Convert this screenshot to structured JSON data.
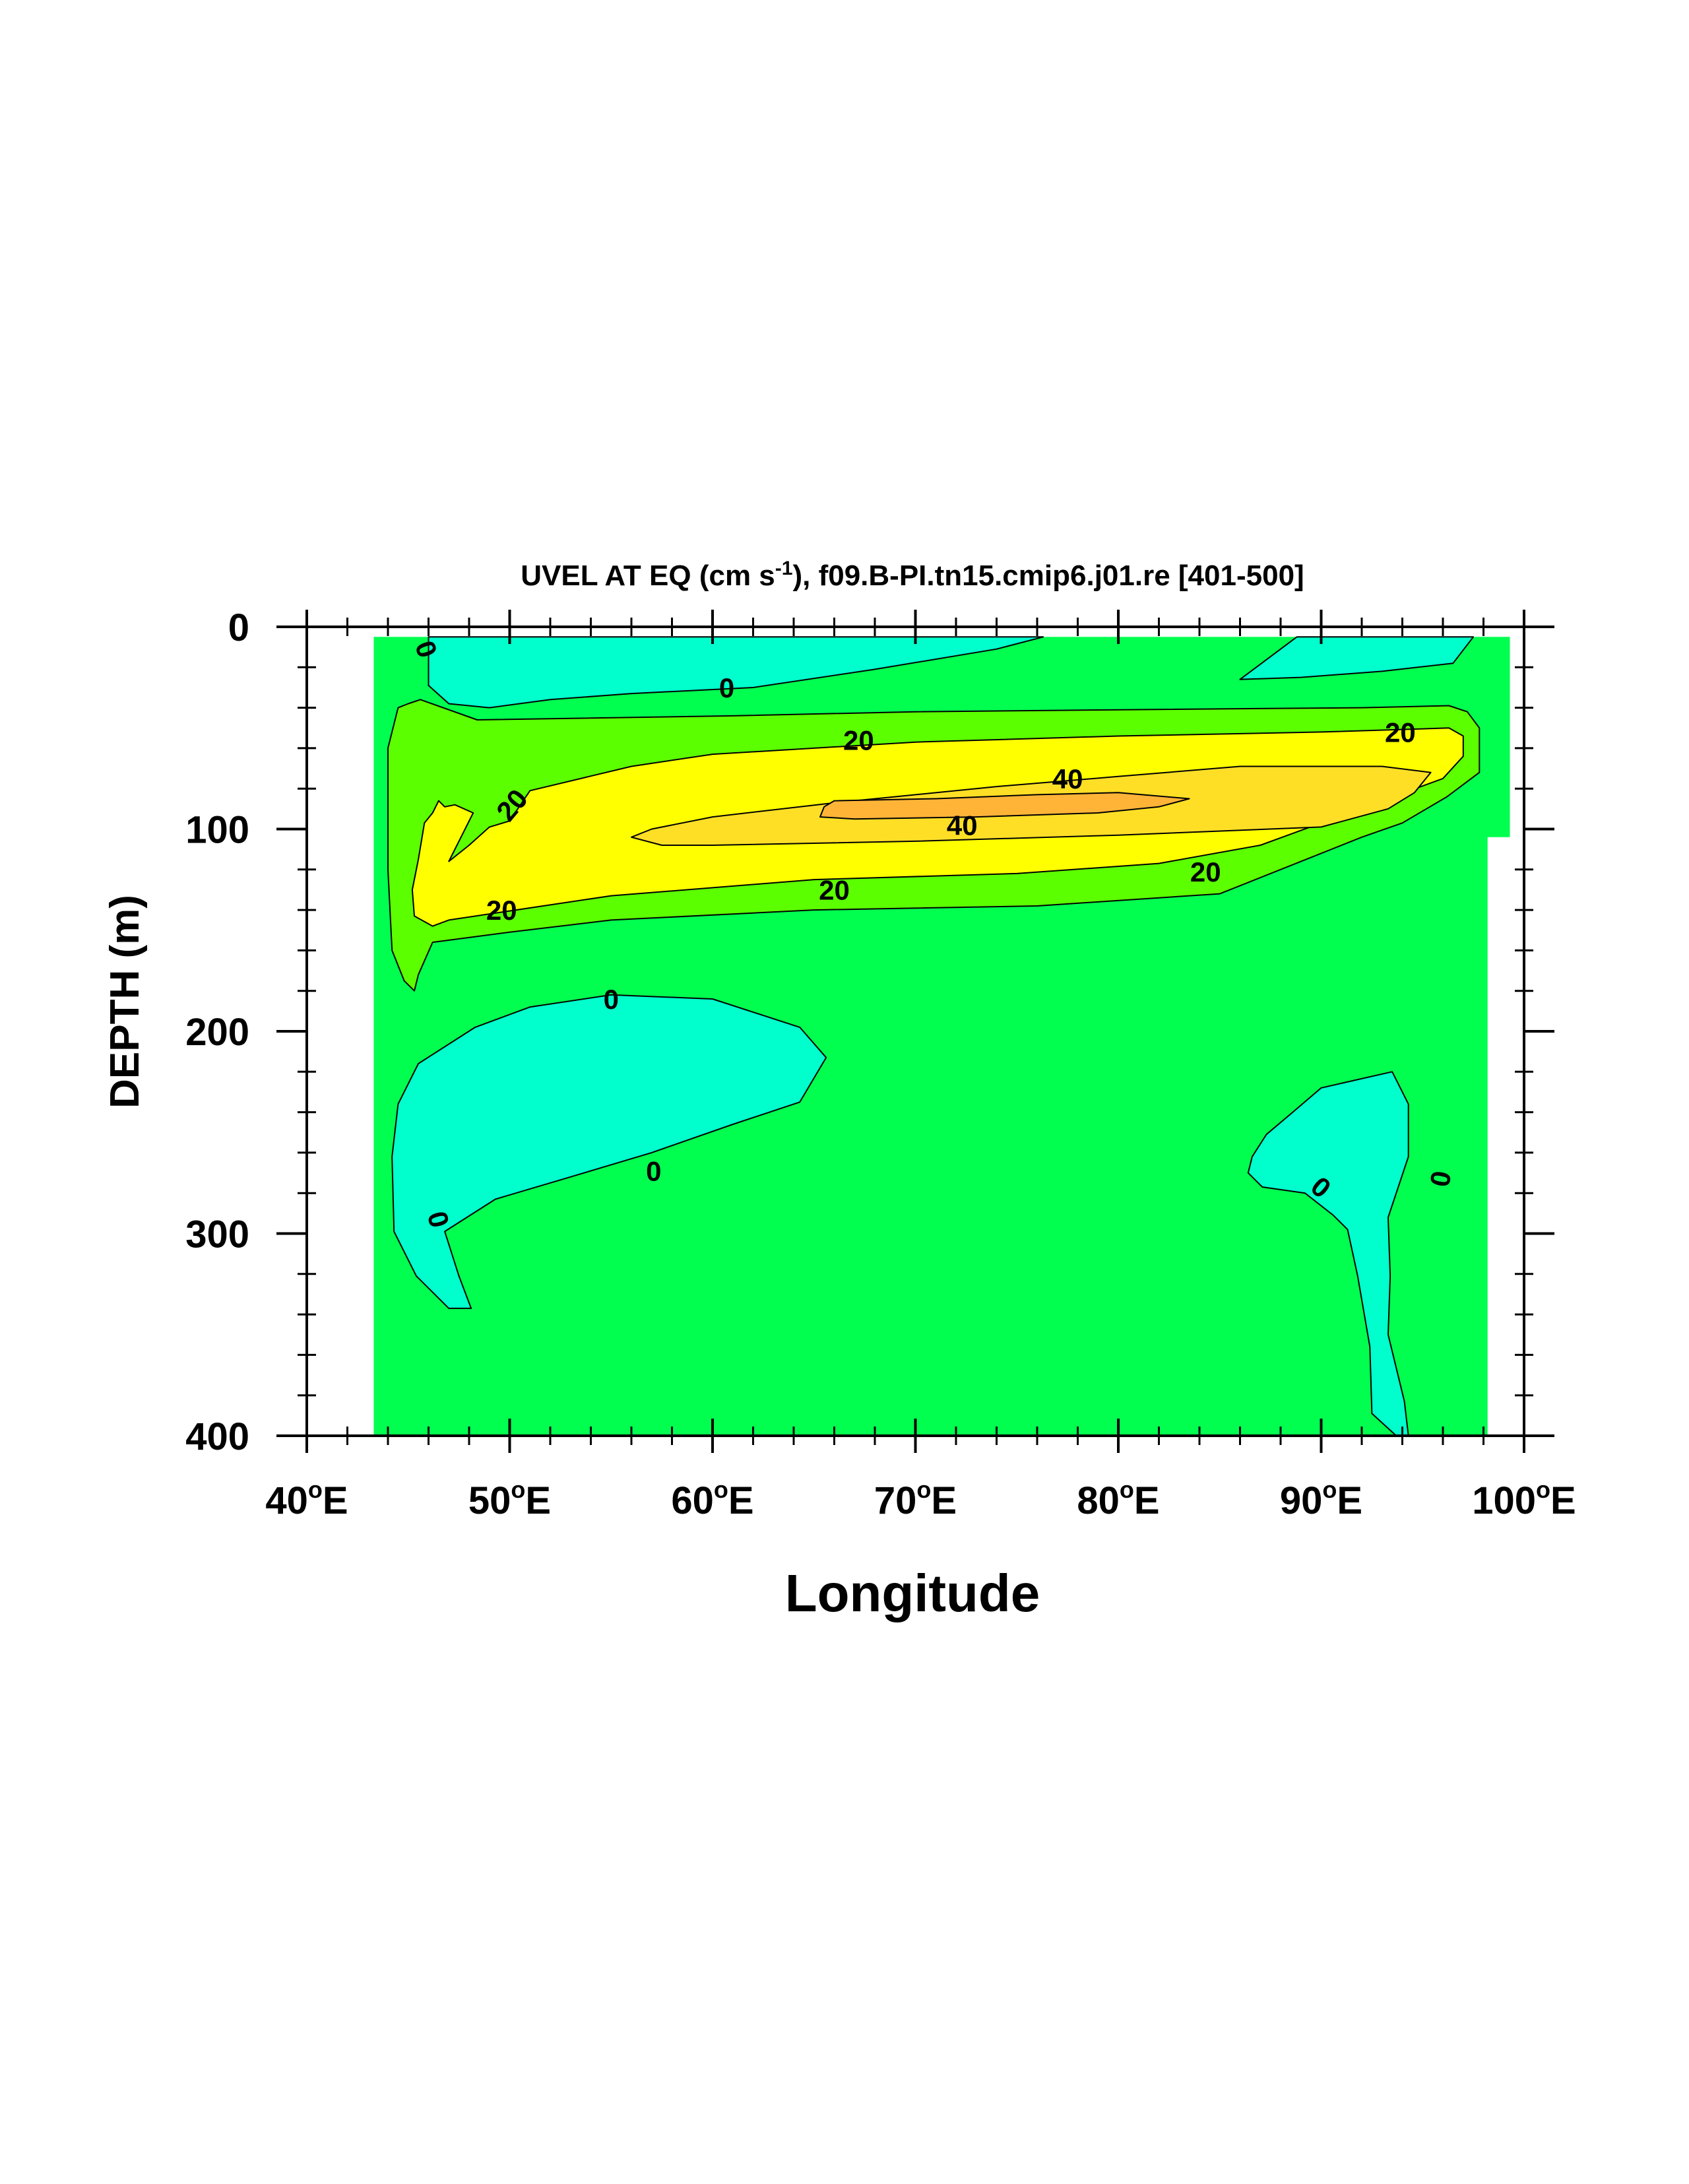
{
  "chart_data": {
    "type": "heatmap",
    "title": "UVEL AT EQ (cm s",
    "title_superscript": "-1",
    "title_suffix": "), f09.B-PI.tn15.cmip6.j01.re [401-500]",
    "xlabel": "Longitude",
    "ylabel": "DEPTH (m)",
    "xlim": [
      40,
      100
    ],
    "ylim": [
      0,
      400
    ],
    "y_reversed": true,
    "x_ticks": [
      {
        "value": 40,
        "label": "40",
        "unit": "E"
      },
      {
        "value": 50,
        "label": "50",
        "unit": "E"
      },
      {
        "value": 60,
        "label": "60",
        "unit": "E"
      },
      {
        "value": 70,
        "label": "70",
        "unit": "E"
      },
      {
        "value": 80,
        "label": "80",
        "unit": "E"
      },
      {
        "value": 90,
        "label": "90",
        "unit": "E"
      },
      {
        "value": 100,
        "label": "100",
        "unit": "E"
      }
    ],
    "degree_symbol": "o",
    "y_ticks": [
      {
        "value": 0,
        "label": "0"
      },
      {
        "value": 100,
        "label": "100"
      },
      {
        "value": 200,
        "label": "200"
      },
      {
        "value": 300,
        "label": "300"
      },
      {
        "value": 400,
        "label": "400"
      }
    ],
    "x_minor_step": 2,
    "y_minor_step": 20,
    "grid": false,
    "legend": "none",
    "colors": {
      "background": "#ffffff",
      "level_0_to_10": "#00ff4f",
      "level_below_0": "#00ffcc",
      "level_10_to_20": "#5cff00",
      "level_20_to_30": "#ffff00",
      "level_30_to_40": "#ffdf26",
      "level_above_40": "#ffb438",
      "contour_line": "#000000"
    },
    "data_domain": [
      [
        43.3,
        5
      ],
      [
        99.3,
        5
      ],
      [
        99.3,
        104
      ],
      [
        98.2,
        104
      ],
      [
        98.2,
        400
      ],
      [
        43.3,
        400
      ]
    ],
    "regions": [
      {
        "level": "level_10_to_20",
        "points": [
          [
            48.4,
            46
          ],
          [
            61,
            44
          ],
          [
            70,
            42
          ],
          [
            80,
            41
          ],
          [
            92,
            40
          ],
          [
            96.3,
            39
          ],
          [
            97.2,
            42
          ],
          [
            97.8,
            50
          ],
          [
            97.8,
            72
          ],
          [
            96.2,
            84
          ],
          [
            94,
            97
          ],
          [
            92,
            104
          ],
          [
            85,
            132
          ],
          [
            76,
            138
          ],
          [
            65,
            140
          ],
          [
            55,
            145
          ],
          [
            50,
            151
          ],
          [
            46.2,
            156
          ],
          [
            45.5,
            172
          ],
          [
            45.3,
            180
          ],
          [
            44.8,
            175
          ],
          [
            44.2,
            160
          ],
          [
            44,
            120
          ],
          [
            44,
            60
          ],
          [
            44.5,
            40
          ],
          [
            45,
            38
          ],
          [
            45.6,
            36
          ]
        ]
      },
      {
        "level": "level_20_to_30",
        "points": [
          [
            47,
            116
          ],
          [
            48,
            108
          ],
          [
            49,
            99
          ],
          [
            50,
            96
          ],
          [
            51,
            81
          ],
          [
            56,
            69
          ],
          [
            60,
            63
          ],
          [
            70,
            57
          ],
          [
            80,
            54
          ],
          [
            90,
            52
          ],
          [
            96.3,
            50
          ],
          [
            97,
            54
          ],
          [
            97,
            64
          ],
          [
            96,
            75
          ],
          [
            93,
            86
          ],
          [
            87,
            108
          ],
          [
            82,
            117
          ],
          [
            75,
            122
          ],
          [
            65,
            125
          ],
          [
            55,
            133
          ],
          [
            47,
            145
          ],
          [
            46.2,
            148
          ],
          [
            45.3,
            143
          ],
          [
            45.2,
            130
          ],
          [
            45.5,
            115
          ],
          [
            45.8,
            97
          ],
          [
            46.2,
            92
          ],
          [
            46.5,
            86
          ],
          [
            46.8,
            89
          ],
          [
            47.3,
            88
          ],
          [
            48.2,
            92
          ]
        ]
      },
      {
        "level": "level_30_to_40",
        "points": [
          [
            56,
            104
          ],
          [
            57,
            100
          ],
          [
            60,
            94
          ],
          [
            66,
            87
          ],
          [
            74,
            79
          ],
          [
            80,
            74
          ],
          [
            86,
            69
          ],
          [
            93,
            69
          ],
          [
            95.4,
            72
          ],
          [
            94.6,
            82
          ],
          [
            93.3,
            90
          ],
          [
            90,
            99
          ],
          [
            80,
            103
          ],
          [
            70,
            106
          ],
          [
            60,
            108
          ],
          [
            57.5,
            108
          ]
        ]
      },
      {
        "level": "level_above_40",
        "points": [
          [
            66,
            86
          ],
          [
            71,
            85
          ],
          [
            76,
            83
          ],
          [
            80,
            82
          ],
          [
            83.5,
            85
          ],
          [
            82,
            89
          ],
          [
            79,
            92
          ],
          [
            73,
            94
          ],
          [
            67,
            95
          ],
          [
            65.3,
            94
          ],
          [
            65.5,
            89
          ]
        ]
      },
      {
        "level": "level_below_0",
        "points": [
          [
            46,
            5
          ],
          [
            76.3,
            5
          ],
          [
            74,
            11
          ],
          [
            68,
            21
          ],
          [
            62,
            30
          ],
          [
            56,
            33
          ],
          [
            52,
            36
          ],
          [
            49,
            40
          ],
          [
            47,
            38
          ],
          [
            46,
            29
          ],
          [
            46,
            13
          ]
        ]
      },
      {
        "level": "level_below_0",
        "points": [
          [
            88.8,
            5
          ],
          [
            97.5,
            5
          ],
          [
            96.5,
            18
          ],
          [
            93,
            22
          ],
          [
            89,
            25
          ],
          [
            86,
            26
          ]
        ]
      },
      {
        "level": "level_below_0",
        "points": [
          [
            55,
            182
          ],
          [
            60,
            184
          ],
          [
            64.3,
            198
          ],
          [
            65.6,
            213
          ],
          [
            64.3,
            235
          ],
          [
            61,
            246
          ],
          [
            57,
            260
          ],
          [
            53,
            272
          ],
          [
            49.3,
            283
          ],
          [
            46.8,
            299
          ],
          [
            47.5,
            321
          ],
          [
            48.1,
            337
          ],
          [
            47,
            337
          ],
          [
            45.4,
            321
          ],
          [
            44.3,
            299
          ],
          [
            44.2,
            262
          ],
          [
            44.5,
            236
          ],
          [
            45.5,
            216
          ],
          [
            48.3,
            198
          ],
          [
            51,
            188
          ]
        ]
      },
      {
        "level": "level_below_0",
        "points": [
          [
            93.5,
            220
          ],
          [
            94.3,
            236
          ],
          [
            94.3,
            262
          ],
          [
            93.3,
            292
          ],
          [
            93.4,
            321
          ],
          [
            93.3,
            350
          ],
          [
            94.1,
            383
          ],
          [
            94.3,
            400
          ],
          [
            93.7,
            400
          ],
          [
            92.5,
            389
          ],
          [
            92.4,
            356
          ],
          [
            91.8,
            321
          ],
          [
            91.3,
            298
          ],
          [
            90.6,
            291
          ],
          [
            89.2,
            280
          ],
          [
            87.1,
            277
          ],
          [
            86.4,
            270
          ],
          [
            86.6,
            262
          ],
          [
            87.3,
            251
          ],
          [
            88.6,
            240
          ],
          [
            90,
            228
          ]
        ]
      }
    ],
    "contour_labels": [
      {
        "text": "0",
        "x": 45.9,
        "y": 11,
        "angle": 70
      },
      {
        "text": "0",
        "x": 60.7,
        "y": 30,
        "angle": 0
      },
      {
        "text": "20",
        "x": 67.2,
        "y": 56,
        "angle": 0
      },
      {
        "text": "20",
        "x": 93.9,
        "y": 52,
        "angle": 0
      },
      {
        "text": "40",
        "x": 77.5,
        "y": 75,
        "angle": 0
      },
      {
        "text": "40",
        "x": 72.3,
        "y": 98,
        "angle": 0
      },
      {
        "text": "20",
        "x": 50.1,
        "y": 88,
        "angle": -50
      },
      {
        "text": "20",
        "x": 49.6,
        "y": 140,
        "angle": 0
      },
      {
        "text": "20",
        "x": 66,
        "y": 130,
        "angle": 0
      },
      {
        "text": "20",
        "x": 84.3,
        "y": 121,
        "angle": 0
      },
      {
        "text": "0",
        "x": 55,
        "y": 184,
        "angle": 0
      },
      {
        "text": "0",
        "x": 57.1,
        "y": 269,
        "angle": 0
      },
      {
        "text": "0",
        "x": 46.5,
        "y": 293,
        "angle": 75
      },
      {
        "text": "0",
        "x": 90,
        "y": 277,
        "angle": 40
      },
      {
        "text": "0",
        "x": 95.9,
        "y": 273,
        "angle": 100
      }
    ]
  }
}
